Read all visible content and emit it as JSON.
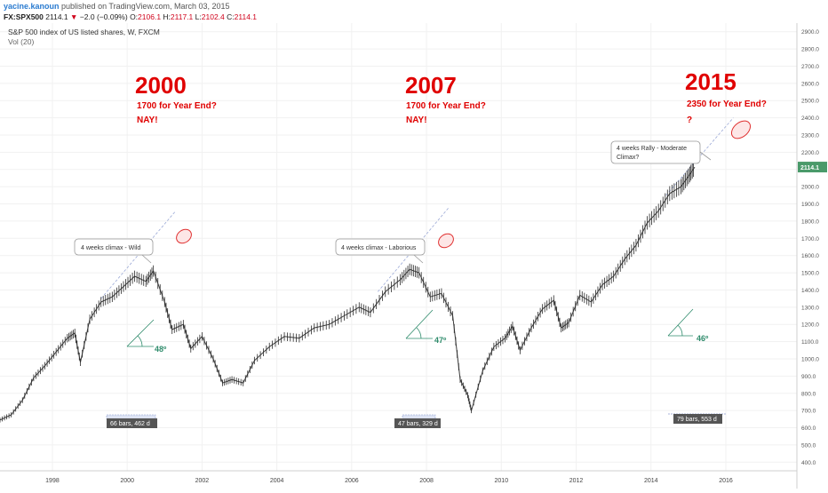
{
  "header": {
    "author": "yacine.kanoun",
    "published": " published on TradingView.com, March 03, 2015",
    "symbol": "FX:SPX500",
    "last": "2114.1",
    "change_arrow": "▼",
    "change": "−2.0 (−0.09%)",
    "o_label": "O:",
    "o_value": "2106.1",
    "h_label": "H:",
    "h_value": "2117.1",
    "l_label": "L:",
    "l_value": "2102.4",
    "c_label": "C:",
    "c_value": "2114.1"
  },
  "chart_data": {
    "type": "line",
    "title": "S&P 500 index of US listed shares, W, FXCM",
    "volume_label": "Vol (20)",
    "ylim": [
      350,
      2950
    ],
    "yticks": [
      400,
      500,
      600,
      700,
      800,
      900,
      1000,
      1100,
      1200,
      1300,
      1400,
      1500,
      1600,
      1700,
      1800,
      1900,
      2000,
      2100,
      2200,
      2300,
      2400,
      2500,
      2600,
      2700,
      2800,
      2900
    ],
    "ytick_labels": [
      "400.0",
      "500.0",
      "600.0",
      "700.0",
      "800.0",
      "900.0",
      "1000.0",
      "1100.0",
      "1200.0",
      "1300.0",
      "1400.0",
      "1500.0",
      "1600.0",
      "1700.0",
      "1800.0",
      "1900.0",
      "2000.0",
      "2100.0",
      "2200.0",
      "2300.0",
      "2400.0",
      "2500.0",
      "2600.0",
      "2700.0",
      "2800.0",
      "2900.0"
    ],
    "xlim": [
      1996.6,
      2017.9
    ],
    "xticks": [
      1998,
      2000,
      2002,
      2004,
      2006,
      2008,
      2010,
      2012,
      2014,
      2016
    ],
    "xtick_labels": [
      "1998",
      "2000",
      "2002",
      "2004",
      "2006",
      "2008",
      "2010",
      "2012",
      "2014",
      "2016"
    ],
    "last_price_label": "2114.1",
    "series": [
      {
        "x": [
          1996.6,
          1996.9,
          1997.2,
          1997.5,
          1997.8,
          1998.1,
          1998.4,
          1998.6,
          1998.75,
          1999.0,
          1999.3,
          1999.6,
          1999.9,
          2000.2,
          2000.5,
          2000.7,
          2001.0,
          2001.2,
          2001.5,
          2001.7,
          2002.0,
          2002.3,
          2002.55,
          2002.8,
          2003.1,
          2003.4,
          2003.8,
          2004.2,
          2004.6,
          2005.0,
          2005.4,
          2005.8,
          2006.2,
          2006.5,
          2006.9,
          2007.3,
          2007.55,
          2007.8,
          2008.1,
          2008.4,
          2008.7,
          2008.9,
          2009.1,
          2009.2,
          2009.5,
          2009.8,
          2010.1,
          2010.3,
          2010.5,
          2010.8,
          2011.1,
          2011.4,
          2011.6,
          2011.8,
          2012.1,
          2012.4,
          2012.7,
          2013.0,
          2013.3,
          2013.6,
          2013.9,
          2014.2,
          2014.5,
          2014.8,
          2015.0,
          2015.17
        ],
        "values": [
          645,
          675,
          760,
          890,
          960,
          1040,
          1120,
          1150,
          980,
          1230,
          1330,
          1360,
          1420,
          1480,
          1450,
          1510,
          1330,
          1170,
          1200,
          1060,
          1130,
          1000,
          860,
          880,
          860,
          990,
          1070,
          1130,
          1120,
          1180,
          1200,
          1250,
          1300,
          1270,
          1390,
          1460,
          1520,
          1500,
          1360,
          1380,
          1250,
          880,
          790,
          700,
          930,
          1070,
          1120,
          1190,
          1050,
          1180,
          1290,
          1340,
          1180,
          1210,
          1370,
          1330,
          1430,
          1480,
          1580,
          1660,
          1790,
          1860,
          1960,
          2000,
          2060,
          2114
        ]
      }
    ],
    "annotations": {
      "year_2000": "2000",
      "year_2007": "2007",
      "year_2015": "2015",
      "target_2000": "1700 for Year End?",
      "target_2007": "1700 for Year End?",
      "target_2015": "2350 for Year End?",
      "verdict_2000": "NAY!",
      "verdict_2007": "NAY!",
      "verdict_2015": "?",
      "callout_2000": "4 weeks climax - Wild",
      "callout_2007": "4 weeks climax - Laborious",
      "callout_2015_line1": "4 weeks Rally - Moderate",
      "callout_2015_line2": "Climax?",
      "angle_2000": "48º",
      "angle_2007": "47º",
      "angle_2015": "46º",
      "range_2000": "66 bars, 462 d",
      "range_2007": "47 bars, 329 d",
      "range_2015": "79 bars, 553 d"
    }
  },
  "colors": {
    "annotation_red": "#e00000",
    "angle_green": "#2e8b6b",
    "trend_blue": "#9aa8d6",
    "candle": "#2b2b2b",
    "last_price_bg": "#4a9a6a",
    "range_box_bg": "#555555"
  }
}
